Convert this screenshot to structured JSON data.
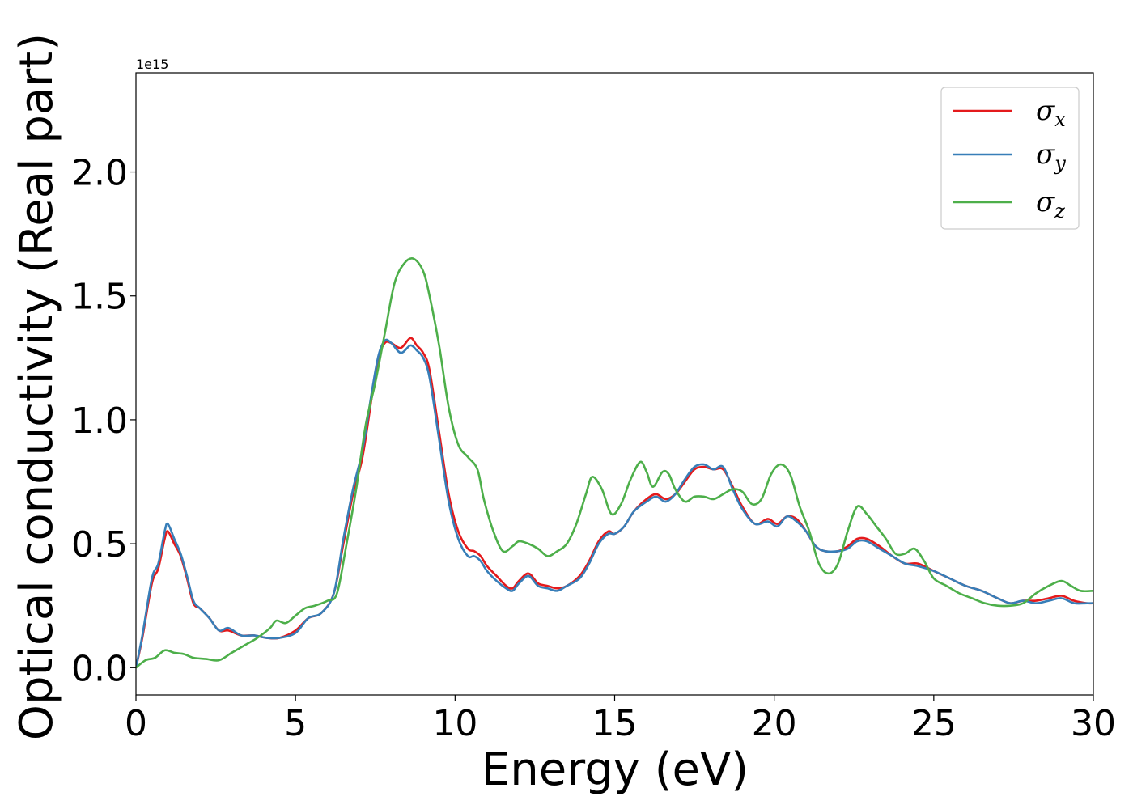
{
  "chart_data": {
    "type": "line",
    "xlabel": "Energy (eV)",
    "ylabel": "Optical conductivity (Real part)",
    "y_offset_label": "1e15",
    "xlim": [
      0,
      30
    ],
    "ylim": [
      -0.11,
      2.4
    ],
    "x_ticks": [
      0,
      5,
      10,
      15,
      20,
      25,
      30
    ],
    "x_tick_labels": [
      "0",
      "5",
      "10",
      "15",
      "20",
      "25",
      "30"
    ],
    "y_ticks": [
      0.0,
      0.5,
      1.0,
      1.5,
      2.0
    ],
    "y_tick_labels": [
      "0.0",
      "0.5",
      "1.0",
      "1.5",
      "2.0"
    ],
    "grid": false,
    "legend_position": "top-right",
    "series": [
      {
        "name": "σx",
        "legend": {
          "symbol": "σ",
          "sub": "x"
        },
        "color": "#e41a1c",
        "x": [
          0,
          0.2,
          0.5,
          0.7,
          0.9,
          1.0,
          1.2,
          1.4,
          1.6,
          1.8,
          2.0,
          2.3,
          2.6,
          2.9,
          3.3,
          3.7,
          4.1,
          4.5,
          5.0,
          5.4,
          5.8,
          6.2,
          6.5,
          6.8,
          7.1,
          7.4,
          7.6,
          7.8,
          8.0,
          8.3,
          8.6,
          8.8,
          9.0,
          9.2,
          9.5,
          9.8,
          10.1,
          10.4,
          10.6,
          10.8,
          11.0,
          11.3,
          11.6,
          11.8,
          12.0,
          12.3,
          12.6,
          12.9,
          13.2,
          13.5,
          13.9,
          14.2,
          14.5,
          14.8,
          15.0,
          15.3,
          15.6,
          16.0,
          16.3,
          16.6,
          16.9,
          17.2,
          17.5,
          17.8,
          18.1,
          18.4,
          18.7,
          19.0,
          19.4,
          19.8,
          20.1,
          20.4,
          20.7,
          21.0,
          21.3,
          21.6,
          22.0,
          22.3,
          22.6,
          22.9,
          23.3,
          23.7,
          24.1,
          24.5,
          25.0,
          25.5,
          26.0,
          26.5,
          27.0,
          27.4,
          27.8,
          28.2,
          28.6,
          29.0,
          29.4,
          29.8,
          30.0
        ],
        "y": [
          0.0,
          0.12,
          0.34,
          0.4,
          0.52,
          0.55,
          0.5,
          0.45,
          0.36,
          0.26,
          0.24,
          0.2,
          0.15,
          0.15,
          0.13,
          0.13,
          0.12,
          0.12,
          0.15,
          0.2,
          0.22,
          0.3,
          0.5,
          0.7,
          0.85,
          1.1,
          1.25,
          1.31,
          1.31,
          1.29,
          1.33,
          1.3,
          1.27,
          1.2,
          0.95,
          0.7,
          0.55,
          0.48,
          0.47,
          0.45,
          0.41,
          0.37,
          0.33,
          0.32,
          0.35,
          0.38,
          0.34,
          0.33,
          0.32,
          0.33,
          0.37,
          0.43,
          0.51,
          0.55,
          0.54,
          0.57,
          0.63,
          0.68,
          0.7,
          0.68,
          0.7,
          0.75,
          0.8,
          0.81,
          0.8,
          0.8,
          0.73,
          0.65,
          0.58,
          0.6,
          0.58,
          0.61,
          0.6,
          0.55,
          0.49,
          0.47,
          0.47,
          0.49,
          0.52,
          0.52,
          0.49,
          0.45,
          0.42,
          0.42,
          0.39,
          0.36,
          0.33,
          0.31,
          0.28,
          0.26,
          0.27,
          0.27,
          0.28,
          0.29,
          0.27,
          0.26,
          0.26
        ]
      },
      {
        "name": "σy",
        "legend": {
          "symbol": "σ",
          "sub": "y"
        },
        "color": "#377eb8",
        "x": [
          0,
          0.2,
          0.5,
          0.7,
          0.9,
          1.0,
          1.2,
          1.4,
          1.6,
          1.8,
          2.0,
          2.3,
          2.6,
          2.9,
          3.3,
          3.7,
          4.1,
          4.5,
          5.0,
          5.4,
          5.8,
          6.2,
          6.5,
          6.8,
          7.1,
          7.4,
          7.6,
          7.8,
          8.0,
          8.3,
          8.6,
          8.8,
          9.0,
          9.2,
          9.5,
          9.8,
          10.1,
          10.4,
          10.6,
          10.8,
          11.0,
          11.3,
          11.6,
          11.8,
          12.0,
          12.3,
          12.6,
          12.9,
          13.2,
          13.5,
          13.9,
          14.2,
          14.5,
          14.8,
          15.0,
          15.3,
          15.6,
          16.0,
          16.3,
          16.6,
          16.9,
          17.2,
          17.5,
          17.8,
          18.1,
          18.4,
          18.7,
          19.0,
          19.4,
          19.8,
          20.1,
          20.4,
          20.7,
          21.0,
          21.3,
          21.6,
          22.0,
          22.3,
          22.6,
          22.9,
          23.3,
          23.7,
          24.1,
          24.5,
          25.0,
          25.5,
          26.0,
          26.5,
          27.0,
          27.4,
          27.8,
          28.2,
          28.6,
          29.0,
          29.4,
          29.8,
          30.0
        ],
        "y": [
          0.0,
          0.13,
          0.36,
          0.42,
          0.55,
          0.58,
          0.52,
          0.46,
          0.37,
          0.27,
          0.24,
          0.2,
          0.15,
          0.16,
          0.13,
          0.13,
          0.12,
          0.12,
          0.14,
          0.2,
          0.22,
          0.3,
          0.52,
          0.72,
          0.88,
          1.12,
          1.26,
          1.32,
          1.31,
          1.27,
          1.3,
          1.28,
          1.25,
          1.17,
          0.92,
          0.67,
          0.52,
          0.45,
          0.45,
          0.43,
          0.39,
          0.35,
          0.32,
          0.31,
          0.34,
          0.37,
          0.33,
          0.32,
          0.31,
          0.33,
          0.36,
          0.42,
          0.5,
          0.54,
          0.54,
          0.57,
          0.63,
          0.67,
          0.69,
          0.67,
          0.7,
          0.76,
          0.81,
          0.82,
          0.8,
          0.81,
          0.72,
          0.64,
          0.58,
          0.59,
          0.57,
          0.61,
          0.59,
          0.55,
          0.49,
          0.47,
          0.47,
          0.48,
          0.51,
          0.51,
          0.48,
          0.45,
          0.42,
          0.41,
          0.39,
          0.36,
          0.33,
          0.31,
          0.28,
          0.26,
          0.27,
          0.26,
          0.27,
          0.28,
          0.26,
          0.26,
          0.26
        ]
      },
      {
        "name": "σz",
        "legend": {
          "symbol": "σ",
          "sub": "z"
        },
        "color": "#4daf4a",
        "x": [
          0,
          0.3,
          0.6,
          0.9,
          1.2,
          1.5,
          1.8,
          2.2,
          2.6,
          3.0,
          3.4,
          3.8,
          4.2,
          4.4,
          4.7,
          5.0,
          5.3,
          5.6,
          6.0,
          6.3,
          6.6,
          6.9,
          7.2,
          7.5,
          7.8,
          8.1,
          8.4,
          8.7,
          9.0,
          9.2,
          9.5,
          9.8,
          10.1,
          10.4,
          10.7,
          10.9,
          11.2,
          11.5,
          11.8,
          12.0,
          12.3,
          12.6,
          12.9,
          13.2,
          13.5,
          13.8,
          14.1,
          14.3,
          14.6,
          14.9,
          15.2,
          15.5,
          15.8,
          16.0,
          16.2,
          16.5,
          16.7,
          16.9,
          17.2,
          17.5,
          17.8,
          18.1,
          18.4,
          18.7,
          19.0,
          19.3,
          19.6,
          19.9,
          20.2,
          20.5,
          20.8,
          21.1,
          21.4,
          21.7,
          22.0,
          22.3,
          22.6,
          22.9,
          23.2,
          23.5,
          23.8,
          24.1,
          24.4,
          24.7,
          25.0,
          25.4,
          25.8,
          26.2,
          26.6,
          27.0,
          27.4,
          27.8,
          28.2,
          28.6,
          29.0,
          29.3,
          29.6,
          30.0
        ],
        "y": [
          0.0,
          0.03,
          0.04,
          0.07,
          0.06,
          0.055,
          0.04,
          0.035,
          0.03,
          0.06,
          0.09,
          0.12,
          0.16,
          0.19,
          0.18,
          0.21,
          0.24,
          0.25,
          0.27,
          0.3,
          0.5,
          0.72,
          0.98,
          1.15,
          1.35,
          1.55,
          1.63,
          1.65,
          1.6,
          1.5,
          1.3,
          1.05,
          0.9,
          0.85,
          0.8,
          0.68,
          0.55,
          0.47,
          0.49,
          0.51,
          0.5,
          0.48,
          0.45,
          0.47,
          0.5,
          0.58,
          0.7,
          0.77,
          0.72,
          0.62,
          0.66,
          0.76,
          0.83,
          0.79,
          0.73,
          0.79,
          0.78,
          0.72,
          0.67,
          0.69,
          0.69,
          0.68,
          0.7,
          0.72,
          0.71,
          0.66,
          0.68,
          0.78,
          0.82,
          0.78,
          0.65,
          0.55,
          0.42,
          0.38,
          0.42,
          0.55,
          0.65,
          0.62,
          0.57,
          0.52,
          0.46,
          0.46,
          0.48,
          0.43,
          0.36,
          0.33,
          0.3,
          0.28,
          0.26,
          0.25,
          0.25,
          0.26,
          0.3,
          0.33,
          0.35,
          0.33,
          0.31,
          0.31
        ]
      }
    ]
  }
}
